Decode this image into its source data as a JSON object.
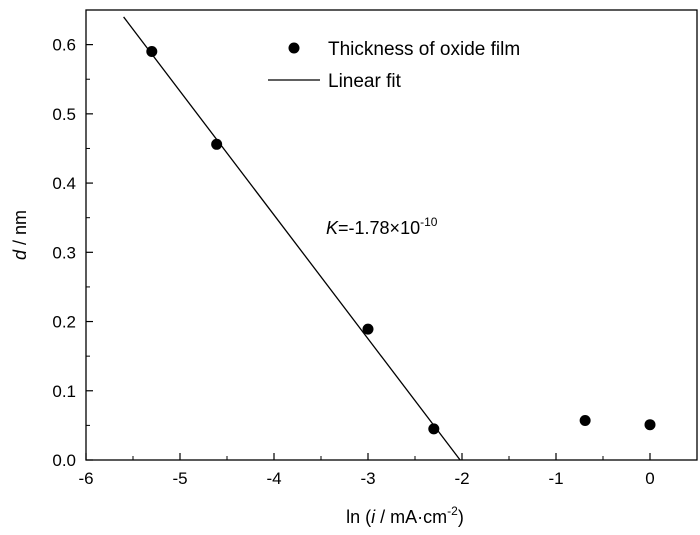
{
  "chart_data": {
    "type": "scatter",
    "title": "",
    "xlim": [
      -6,
      0.5
    ],
    "ylim": [
      0,
      0.65
    ],
    "x_ticks": [
      -6,
      -5,
      -4,
      -3,
      -2,
      -1,
      0
    ],
    "y_ticks": [
      0.0,
      0.1,
      0.2,
      0.3,
      0.4,
      0.5,
      0.6
    ],
    "x_tick_labels": [
      "-6",
      "-5",
      "-4",
      "-3",
      "-2",
      "-1",
      "0"
    ],
    "y_tick_labels": [
      "0.0",
      "0.1",
      "0.2",
      "0.3",
      "0.4",
      "0.5",
      "0.6"
    ],
    "xlabel": {
      "pre": "ln (",
      "italic": "i",
      "post": " / mA·cm",
      "sup": "-2",
      "close": ")"
    },
    "ylabel": {
      "italic": "d",
      "rest": " / nm"
    },
    "series": [
      {
        "name": "Thickness of oxide film",
        "kind": "scatter",
        "points": [
          {
            "x": -5.3,
            "y": 0.59
          },
          {
            "x": -4.61,
            "y": 0.456
          },
          {
            "x": -3.0,
            "y": 0.189
          },
          {
            "x": -2.3,
            "y": 0.045
          },
          {
            "x": -0.69,
            "y": 0.057
          },
          {
            "x": 0.0,
            "y": 0.051
          }
        ]
      },
      {
        "name": "Linear fit",
        "kind": "line",
        "points": [
          {
            "x": -5.6,
            "y": 0.64
          },
          {
            "x": -2.02,
            "y": 0.0
          }
        ]
      }
    ],
    "legend": {
      "position": "top-right",
      "entries": [
        "Thickness of oxide film",
        "Linear fit"
      ]
    },
    "annotation": {
      "italic": "K",
      "rest": "=-1.78×10",
      "sup": "-10",
      "x": -3.5,
      "y": 0.33
    },
    "grid": false
  }
}
